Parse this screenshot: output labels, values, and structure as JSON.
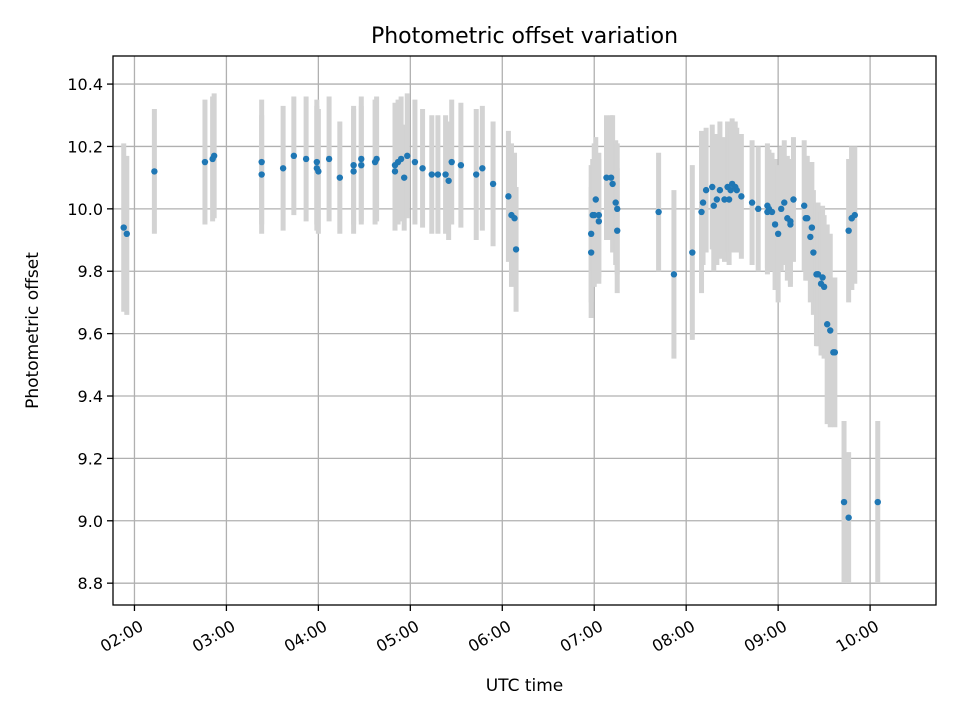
{
  "chart_data": {
    "type": "scatter",
    "title": "Photometric offset variation",
    "xlabel": "UTC time",
    "ylabel": "Photometric offset",
    "x_unit": "UTC time (HH:MM)",
    "xlim": [
      "01:46",
      "10:43"
    ],
    "ylim": [
      8.73,
      10.49
    ],
    "x_ticks": [
      "02:00",
      "03:00",
      "04:00",
      "05:00",
      "06:00",
      "07:00",
      "08:00",
      "09:00",
      "10:00"
    ],
    "y_ticks": [
      "8.8",
      "9.0",
      "9.2",
      "9.4",
      "9.6",
      "9.8",
      "10.0",
      "10.2",
      "10.4"
    ],
    "grid": true,
    "legend": false,
    "colors": {
      "points": "#1f77b4",
      "error_bars": "#d3d3d3",
      "grid": "#b0b0b0"
    },
    "series": [
      {
        "x": [
          "01:53",
          "01:55",
          "02:13",
          "02:46",
          "02:51",
          "02:52",
          "03:23",
          "03:23",
          "03:37",
          "03:44",
          "03:52",
          "03:59",
          "03:59",
          "04:00",
          "04:07",
          "04:14",
          "04:23",
          "04:23",
          "04:28",
          "04:28",
          "04:37",
          "04:38",
          "04:50",
          "04:50",
          "04:52",
          "04:54",
          "04:56",
          "04:58",
          "05:03",
          "05:08",
          "05:14",
          "05:18",
          "05:23",
          "05:25",
          "05:27",
          "05:33",
          "05:43",
          "05:47",
          "05:54",
          "06:04",
          "06:06",
          "06:08",
          "06:09",
          "06:58",
          "06:58",
          "06:59",
          "07:00",
          "07:01",
          "07:03",
          "07:03",
          "07:08",
          "07:11",
          "07:12",
          "07:14",
          "07:15",
          "07:15",
          "07:42",
          "07:52",
          "08:04",
          "08:10",
          "08:11",
          "08:13",
          "08:17",
          "08:18",
          "08:20",
          "08:22",
          "08:25",
          "08:27",
          "08:28",
          "08:29",
          "08:30",
          "08:32",
          "08:33",
          "08:36",
          "08:43",
          "08:47",
          "08:53",
          "08:53",
          "08:54",
          "08:56",
          "08:58",
          "09:00",
          "09:02",
          "09:04",
          "09:06",
          "09:08",
          "09:08",
          "09:10",
          "09:17",
          "09:18",
          "09:19",
          "09:21",
          "09:22",
          "09:23",
          "09:25",
          "09:26",
          "09:26",
          "09:28",
          "09:29",
          "09:30",
          "09:32",
          "09:34",
          "09:36",
          "09:37",
          "09:43",
          "09:46",
          "09:46",
          "09:48",
          "09:48",
          "09:50",
          "10:05"
        ],
        "values": [
          9.94,
          9.92,
          10.12,
          10.15,
          10.16,
          10.17,
          10.11,
          10.15,
          10.13,
          10.17,
          10.16,
          10.15,
          10.13,
          10.12,
          10.16,
          10.1,
          10.12,
          10.14,
          10.16,
          10.14,
          10.15,
          10.16,
          10.14,
          10.12,
          10.15,
          10.16,
          10.1,
          10.17,
          10.15,
          10.13,
          10.11,
          10.11,
          10.11,
          10.09,
          10.15,
          10.14,
          10.11,
          10.13,
          10.08,
          10.04,
          9.98,
          9.97,
          9.87,
          9.86,
          9.92,
          9.98,
          9.98,
          10.03,
          9.96,
          9.98,
          10.1,
          10.1,
          10.08,
          10.02,
          10.0,
          9.93,
          9.99,
          9.79,
          9.86,
          9.99,
          10.02,
          10.06,
          10.07,
          10.01,
          10.03,
          10.06,
          10.03,
          10.07,
          10.03,
          10.06,
          10.08,
          10.07,
          10.06,
          10.04,
          10.02,
          10.0,
          9.99,
          10.01,
          10.0,
          9.99,
          9.95,
          9.92,
          10.0,
          10.02,
          9.97,
          9.95,
          9.96,
          10.03,
          10.01,
          9.97,
          9.97,
          9.91,
          9.94,
          9.86,
          9.79,
          9.79,
          9.79,
          9.76,
          9.78,
          9.75,
          9.63,
          9.61,
          9.54,
          9.54,
          9.06,
          9.93,
          9.01,
          9.97,
          9.97,
          9.98,
          9.06
        ],
        "error_low": [
          9.67,
          9.66,
          9.92,
          9.95,
          9.96,
          9.97,
          9.92,
          9.95,
          9.93,
          9.98,
          9.96,
          9.95,
          9.93,
          9.92,
          9.96,
          9.92,
          9.92,
          9.95,
          9.96,
          9.95,
          9.95,
          9.96,
          9.94,
          9.93,
          9.95,
          9.96,
          9.93,
          9.97,
          9.95,
          9.94,
          9.92,
          9.92,
          9.92,
          9.9,
          9.95,
          9.94,
          9.9,
          9.93,
          9.88,
          9.83,
          9.75,
          9.76,
          9.67,
          9.65,
          9.7,
          9.8,
          9.75,
          9.83,
          9.76,
          9.78,
          9.9,
          9.9,
          9.86,
          9.82,
          9.79,
          9.73,
          9.8,
          9.52,
          9.58,
          9.73,
          9.82,
          9.86,
          9.87,
          9.8,
          9.82,
          9.84,
          9.83,
          9.86,
          9.82,
          9.86,
          9.87,
          9.86,
          9.86,
          9.84,
          9.82,
          9.8,
          9.79,
          9.81,
          9.81,
          9.8,
          9.74,
          9.7,
          9.8,
          9.82,
          9.77,
          9.75,
          9.76,
          9.83,
          9.8,
          9.77,
          9.77,
          9.7,
          9.73,
          9.66,
          9.56,
          9.56,
          9.56,
          9.53,
          9.55,
          9.52,
          9.31,
          9.3,
          9.31,
          9.3,
          8.8,
          9.7,
          8.8,
          9.74,
          9.74,
          9.76,
          8.8
        ],
        "error_high": [
          10.21,
          10.17,
          10.32,
          10.35,
          10.36,
          10.37,
          10.3,
          10.35,
          10.33,
          10.36,
          10.36,
          10.35,
          10.33,
          10.32,
          10.36,
          10.28,
          10.32,
          10.33,
          10.36,
          10.33,
          10.35,
          10.36,
          10.34,
          10.31,
          10.35,
          10.36,
          10.27,
          10.37,
          10.35,
          10.32,
          10.3,
          10.3,
          10.3,
          10.28,
          10.35,
          10.34,
          10.32,
          10.33,
          10.28,
          10.25,
          10.21,
          10.18,
          10.07,
          10.07,
          10.14,
          10.16,
          10.21,
          10.23,
          10.16,
          10.18,
          10.3,
          10.3,
          10.3,
          10.22,
          10.21,
          10.13,
          10.18,
          10.06,
          10.14,
          10.25,
          10.22,
          10.26,
          10.27,
          10.22,
          10.24,
          10.28,
          10.23,
          10.28,
          10.24,
          10.26,
          10.29,
          10.28,
          10.26,
          10.24,
          10.22,
          10.2,
          10.19,
          10.21,
          10.19,
          10.18,
          10.16,
          10.14,
          10.2,
          10.22,
          10.17,
          10.15,
          10.16,
          10.23,
          10.22,
          10.17,
          10.17,
          10.12,
          10.15,
          10.06,
          10.02,
          10.02,
          10.02,
          9.99,
          10.01,
          9.98,
          9.95,
          9.92,
          9.77,
          9.78,
          9.32,
          10.16,
          9.22,
          10.2,
          10.2,
          10.2,
          9.32
        ]
      }
    ]
  }
}
